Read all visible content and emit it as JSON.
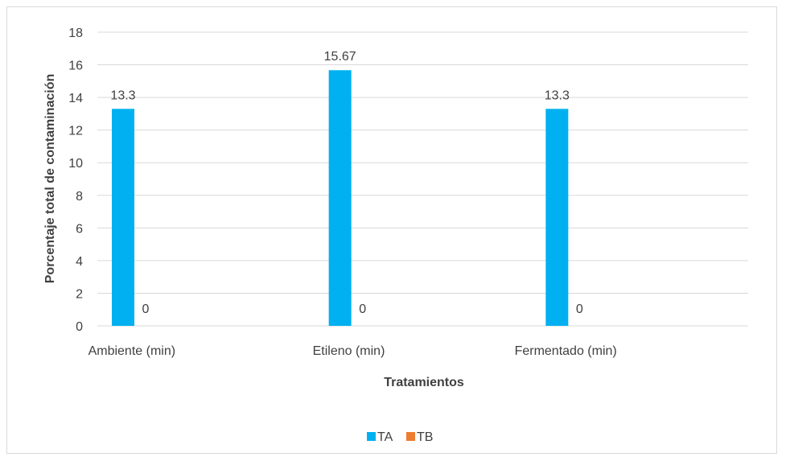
{
  "chart_data": {
    "type": "bar",
    "title": "",
    "xlabel": "Tratamientos",
    "ylabel": "Porcentaje total de contaminación",
    "categories": [
      "Ambiente (min)",
      "Etileno (min)",
      "Fermentado (min)"
    ],
    "series": [
      {
        "name": "TA",
        "values": [
          13.3,
          15.67,
          13.3
        ],
        "color": "#00b0f0"
      },
      {
        "name": "TB",
        "values": [
          0,
          0,
          0
        ],
        "color": "#ed7d31"
      }
    ],
    "data_labels": [
      [
        "13.3",
        "15.67",
        "13.3"
      ],
      [
        "0",
        "0",
        "0"
      ]
    ],
    "y_ticks": [
      "0",
      "2",
      "4",
      "6",
      "8",
      "10",
      "12",
      "14",
      "16",
      "18"
    ],
    "ylim": [
      0,
      18
    ],
    "grid": true,
    "legend_position": "bottom",
    "colors": {
      "gridline": "#d9d9d9",
      "axis_text": "#404040"
    }
  }
}
